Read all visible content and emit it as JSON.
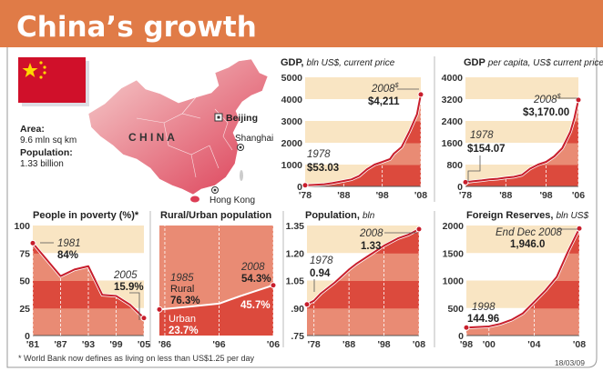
{
  "title": "China’s growth",
  "info": {
    "area_label": "Area:",
    "area_value": "9.6 mln sq km",
    "population_label": "Population:",
    "population_value": "1.33 billion"
  },
  "map": {
    "country": "C H I N A",
    "cities": [
      "Beijing",
      "Shanghai",
      "Hong Kong"
    ]
  },
  "colors": {
    "header": "#e07b47",
    "cream": "#f9e5c3",
    "dark_fill": "#dc4a3d",
    "light_fill": "#e98b74",
    "line": "#c81e2c",
    "flag": "#d0102a",
    "star": "#ffd700"
  },
  "footnote": "* World Bank now defines as living on less than US$1.25 per day",
  "date": "18/03/09",
  "chart_data": [
    {
      "type": "area",
      "title": "GDP,",
      "subtitle": "bln US$, current price",
      "ylim": [
        0,
        5000
      ],
      "yticks": [
        "0",
        "1000",
        "2000",
        "3000",
        "4000",
        "5000"
      ],
      "xlim": [
        1978,
        2008
      ],
      "xticks": [
        {
          "x": 1978,
          "label": "'78"
        },
        {
          "x": 1988,
          "label": "'88"
        },
        {
          "x": 1998,
          "label": "'98"
        },
        {
          "x": 2008,
          "label": "'08"
        }
      ],
      "x": [
        1978,
        1980,
        1983,
        1985,
        1988,
        1990,
        1992,
        1994,
        1996,
        1998,
        2000,
        2001,
        2003,
        2005,
        2007,
        2008
      ],
      "y": [
        53,
        70,
        100,
        150,
        250,
        320,
        480,
        780,
        1000,
        1120,
        1250,
        1500,
        1800,
        2500,
        3300,
        4211
      ],
      "annotations": [
        {
          "year": "1978",
          "value": "$53.03"
        },
        {
          "year": "2008",
          "mark": "$",
          "value": "$4,211"
        }
      ]
    },
    {
      "type": "area",
      "title": "GDP",
      "subtitle": "per capita, US$ current price",
      "ylim": [
        0,
        4000
      ],
      "yticks": [
        "0",
        "800",
        "1600",
        "2400",
        "3200",
        "4000"
      ],
      "xlim": [
        1978,
        2006
      ],
      "xticks": [
        {
          "x": 1978,
          "label": "'78"
        },
        {
          "x": 1988,
          "label": "'88"
        },
        {
          "x": 1998,
          "label": "'98"
        },
        {
          "x": 2006,
          "label": "'06"
        }
      ],
      "x": [
        1978,
        1980,
        1982,
        1984,
        1986,
        1988,
        1990,
        1992,
        1994,
        1996,
        1998,
        2000,
        2002,
        2003,
        2004,
        2005,
        2006
      ],
      "y": [
        154,
        190,
        220,
        260,
        280,
        320,
        350,
        420,
        650,
        800,
        900,
        1100,
        1400,
        1700,
        2000,
        2500,
        3170
      ],
      "annotations": [
        {
          "year": "1978",
          "value": "$154.07"
        },
        {
          "year": "2008",
          "mark": "$",
          "value": "$3,170.00"
        }
      ]
    },
    {
      "type": "area",
      "title": "People in poverty (%)*",
      "ylim": [
        0,
        100
      ],
      "yticks": [
        "0",
        "25",
        "50",
        "75",
        "100"
      ],
      "xlim": [
        1981,
        2005
      ],
      "xticks": [
        {
          "x": 1981,
          "label": "'81"
        },
        {
          "x": 1987,
          "label": "'87"
        },
        {
          "x": 1993,
          "label": "'93"
        },
        {
          "x": 1999,
          "label": "'99"
        },
        {
          "x": 2005,
          "label": "'05"
        }
      ],
      "x": [
        1981,
        1984,
        1987,
        1990,
        1993,
        1996,
        1999,
        2002,
        2005
      ],
      "y": [
        84,
        69,
        54,
        60,
        63,
        37,
        36,
        28,
        15.9
      ],
      "annotations": [
        {
          "year": "1981",
          "value": "84%"
        },
        {
          "year": "2005",
          "value": "15.9%"
        }
      ]
    },
    {
      "type": "area",
      "title": "Rural/Urban population",
      "ylim": [
        0,
        100
      ],
      "xlim": [
        1985,
        2006
      ],
      "xticks": [
        {
          "x": 1986,
          "label": "'86"
        },
        {
          "x": 1996,
          "label": "'96"
        },
        {
          "x": 2006,
          "label": "'06"
        }
      ],
      "series": [
        {
          "name": "Urban",
          "x": [
            1985,
            1990,
            1996,
            2000,
            2006
          ],
          "y": [
            23.7,
            26,
            29,
            36,
            45.7
          ]
        }
      ],
      "annotations": [
        {
          "year": "1985",
          "name": "Rural",
          "value": "76.3%"
        },
        {
          "name": "Urban",
          "value": "23.7%"
        },
        {
          "year": "2008",
          "value": "54.3%"
        },
        {
          "value": "45.7%"
        }
      ]
    },
    {
      "type": "area",
      "title": "Population,",
      "subtitle": "bln",
      "ylim": [
        0.75,
        1.35
      ],
      "yticks": [
        ".75",
        ".90",
        "1.05",
        "1.20",
        "1.35"
      ],
      "xlim": [
        1976,
        2008
      ],
      "xticks": [
        {
          "x": 1978,
          "label": "'78"
        },
        {
          "x": 1988,
          "label": "'88"
        },
        {
          "x": 1998,
          "label": "'98"
        },
        {
          "x": 2008,
          "label": "'08"
        }
      ],
      "x": [
        1976,
        1978,
        1980,
        1984,
        1988,
        1990,
        1994,
        1998,
        2002,
        2005,
        2008
      ],
      "y": [
        0.92,
        0.94,
        0.98,
        1.04,
        1.11,
        1.14,
        1.19,
        1.24,
        1.28,
        1.3,
        1.33
      ],
      "annotations": [
        {
          "year": "1978",
          "value": "0.94"
        },
        {
          "year": "2008",
          "value": "1.33"
        }
      ]
    },
    {
      "type": "area",
      "title": "Foreign Reserves,",
      "subtitle": "bln US$",
      "ylim": [
        0,
        2000
      ],
      "yticks": [
        "0",
        "500",
        "1000",
        "1500",
        "2000"
      ],
      "xlim": [
        1998,
        2008
      ],
      "xticks": [
        {
          "x": 1998,
          "label": "'98"
        },
        {
          "x": 2000,
          "label": "'00"
        },
        {
          "x": 2004,
          "label": "'04"
        },
        {
          "x": 2008,
          "label": "'08"
        }
      ],
      "x": [
        1998,
        1999,
        2000,
        2001,
        2002,
        2003,
        2004,
        2005,
        2006,
        2007,
        2008
      ],
      "y": [
        145,
        155,
        166,
        212,
        286,
        403,
        610,
        819,
        1066,
        1528,
        1946
      ],
      "annotations": [
        {
          "year": "1998",
          "value": "144.96"
        },
        {
          "year": "End Dec 2008",
          "value": "1,946.0"
        }
      ]
    }
  ]
}
